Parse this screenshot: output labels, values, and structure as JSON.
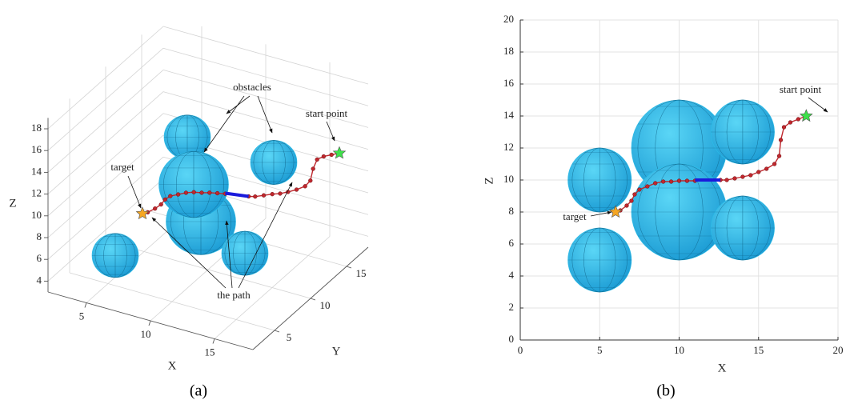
{
  "chart_data": [
    {
      "type": "scatter3d",
      "caption": "(a)",
      "xlabel": "X",
      "ylabel": "Y",
      "zlabel": "Z",
      "xlim": [
        2,
        18
      ],
      "ylim": [
        2,
        18
      ],
      "zlim": [
        3,
        19
      ],
      "xticks": [
        5,
        10,
        15
      ],
      "yticks": [
        5,
        10,
        15
      ],
      "zticks": [
        4,
        6,
        8,
        10,
        12,
        14,
        16,
        18
      ],
      "grid": true,
      "obstacle_color": "#2bbde8",
      "obstacles": {
        "x": [
          5,
          5,
          10,
          10,
          14,
          14
        ],
        "y": [
          6,
          16,
          8,
          9,
          12,
          8
        ],
        "z": [
          5,
          10,
          12,
          8,
          13,
          7
        ],
        "r": [
          2,
          2,
          3,
          3,
          2,
          2
        ]
      },
      "series": [
        {
          "color": "#c0272d",
          "x": [
            18,
            17.5,
            17,
            16.6,
            16.4,
            16.3,
            16,
            15.5,
            15,
            14.5,
            14,
            13.5,
            13,
            12.6,
            11,
            10.5,
            10,
            9.5,
            9,
            8.5,
            8,
            7.5,
            7.2,
            7,
            6.7,
            6.3,
            6
          ],
          "y": [
            14,
            13.8,
            13.6,
            13.4,
            13.2,
            13,
            12.8,
            12.5,
            12.2,
            12,
            11.8,
            11.5,
            11.2,
            11,
            10.6,
            10.4,
            10.2,
            10,
            9.8,
            9.6,
            9.4,
            9.2,
            9,
            8.8,
            8.5,
            8.2,
            8
          ],
          "z": [
            14,
            13.8,
            13.6,
            13.3,
            12.5,
            11.5,
            11,
            10.7,
            10.5,
            10.3,
            10.2,
            10.1,
            10,
            10,
            9.95,
            9.95,
            9.95,
            9.9,
            9.9,
            9.8,
            9.6,
            9.4,
            9.1,
            8.7,
            8.4,
            8.1,
            8
          ]
        },
        {
          "color": "#1a1adc",
          "x": [
            12.6,
            12.4,
            12.2,
            12,
            11.8,
            11.6,
            11.4,
            11.2,
            11
          ],
          "y": [
            11,
            10.95,
            10.9,
            10.85,
            10.8,
            10.75,
            10.7,
            10.65,
            10.6
          ],
          "z": [
            10,
            10,
            10,
            10,
            10,
            10,
            10,
            10,
            10
          ]
        }
      ],
      "start": {
        "x": 18,
        "y": 14,
        "z": 14,
        "color": "#3ee04a"
      },
      "target": {
        "x": 6,
        "y": 8,
        "z": 8,
        "color": "#f5a623"
      },
      "annotations": [
        "obstacles",
        "start point",
        "target",
        "the path"
      ]
    },
    {
      "type": "scatter",
      "caption": "(b)",
      "xlabel": "X",
      "ylabel": "Z",
      "xlim": [
        0,
        20
      ],
      "ylim": [
        0,
        20
      ],
      "xticks": [
        0,
        5,
        10,
        15,
        20
      ],
      "yticks": [
        0,
        2,
        4,
        6,
        8,
        10,
        12,
        14,
        16,
        18,
        20
      ],
      "grid": true,
      "obstacle_color": "#2bbde8",
      "obstacles": {
        "x": [
          5,
          5,
          10,
          10,
          14,
          14
        ],
        "z": [
          5,
          10,
          12,
          8,
          13,
          7
        ],
        "r": [
          2,
          2,
          3,
          3,
          2,
          2
        ]
      },
      "series": [
        {
          "color": "#c0272d",
          "x": [
            18,
            17.5,
            17,
            16.6,
            16.4,
            16.3,
            16,
            15.5,
            15,
            14.5,
            14,
            13.5,
            13,
            12.6,
            11,
            10.5,
            10,
            9.5,
            9,
            8.5,
            8,
            7.5,
            7.2,
            7,
            6.7,
            6.3,
            6
          ],
          "z": [
            14,
            13.8,
            13.6,
            13.3,
            12.5,
            11.5,
            11,
            10.7,
            10.5,
            10.3,
            10.2,
            10.1,
            10,
            10,
            9.95,
            9.95,
            9.95,
            9.9,
            9.9,
            9.8,
            9.6,
            9.4,
            9.1,
            8.7,
            8.4,
            8.1,
            8
          ]
        },
        {
          "color": "#1a1adc",
          "x": [
            12.6,
            12.4,
            12.2,
            12,
            11.8,
            11.6,
            11.4,
            11.2,
            11
          ],
          "z": [
            10,
            10,
            10,
            10,
            10,
            10,
            10,
            10,
            10
          ]
        }
      ],
      "start": {
        "x": 18,
        "z": 14,
        "color": "#3ee04a"
      },
      "target": {
        "x": 6,
        "z": 8,
        "color": "#f5a623"
      },
      "annotations": [
        "start point",
        "target"
      ]
    }
  ]
}
